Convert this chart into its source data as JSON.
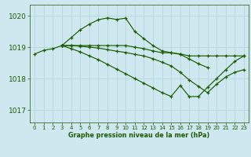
{
  "bg_color": "#cfe8f0",
  "grid_color": "#b8d8e0",
  "line_color": "#1a5c00",
  "marker_color": "#1a5c00",
  "title": "Graphe pression niveau de la mer (hPa)",
  "xlim": [
    -0.5,
    23.5
  ],
  "ylim": [
    1016.6,
    1020.35
  ],
  "yticks": [
    1017,
    1018,
    1019,
    1020
  ],
  "xticks": [
    0,
    1,
    2,
    3,
    4,
    5,
    6,
    7,
    8,
    9,
    10,
    11,
    12,
    13,
    14,
    15,
    16,
    17,
    18,
    19,
    20,
    21,
    22,
    23
  ],
  "series": [
    {
      "x": [
        0,
        1,
        2,
        3,
        4,
        5,
        6,
        7,
        8,
        9,
        10,
        11,
        12,
        13,
        14,
        15,
        16,
        17,
        18,
        19
      ],
      "y": [
        1018.78,
        1018.9,
        1018.95,
        1019.05,
        1019.3,
        1019.55,
        1019.73,
        1019.87,
        1019.93,
        1019.88,
        1019.92,
        1019.5,
        1019.27,
        1019.05,
        1018.88,
        1018.82,
        1018.77,
        1018.62,
        1018.47,
        1018.35
      ]
    },
    {
      "x": [
        3,
        4,
        5,
        6,
        7,
        8,
        9,
        10,
        11,
        12,
        13,
        14,
        15,
        16,
        17,
        18,
        19,
        20,
        21,
        22,
        23
      ],
      "y": [
        1019.05,
        1019.05,
        1019.05,
        1019.05,
        1019.05,
        1019.05,
        1019.05,
        1019.05,
        1019.0,
        1018.95,
        1018.88,
        1018.82,
        1018.82,
        1018.78,
        1018.72,
        1018.72,
        1018.72,
        1018.72,
        1018.72,
        1018.72,
        1018.72
      ]
    },
    {
      "x": [
        3,
        4,
        5,
        6,
        7,
        8,
        9,
        10,
        11,
        12,
        13,
        14,
        15,
        16,
        17,
        18,
        19,
        20,
        21,
        22,
        23
      ],
      "y": [
        1019.05,
        1019.05,
        1019.03,
        1019.0,
        1018.97,
        1018.92,
        1018.87,
        1018.83,
        1018.77,
        1018.72,
        1018.63,
        1018.52,
        1018.4,
        1018.2,
        1017.95,
        1017.75,
        1017.55,
        1017.82,
        1018.05,
        1018.2,
        1018.28
      ]
    },
    {
      "x": [
        3,
        4,
        5,
        6,
        7,
        8,
        9,
        10,
        11,
        12,
        13,
        14,
        15,
        16,
        17,
        18,
        19,
        20,
        21,
        22,
        23
      ],
      "y": [
        1019.05,
        1018.95,
        1018.85,
        1018.72,
        1018.6,
        1018.45,
        1018.3,
        1018.15,
        1018.0,
        1017.85,
        1017.7,
        1017.55,
        1017.43,
        1017.78,
        1017.42,
        1017.43,
        1017.72,
        1018.0,
        1018.28,
        1018.55,
        1018.72
      ]
    }
  ]
}
